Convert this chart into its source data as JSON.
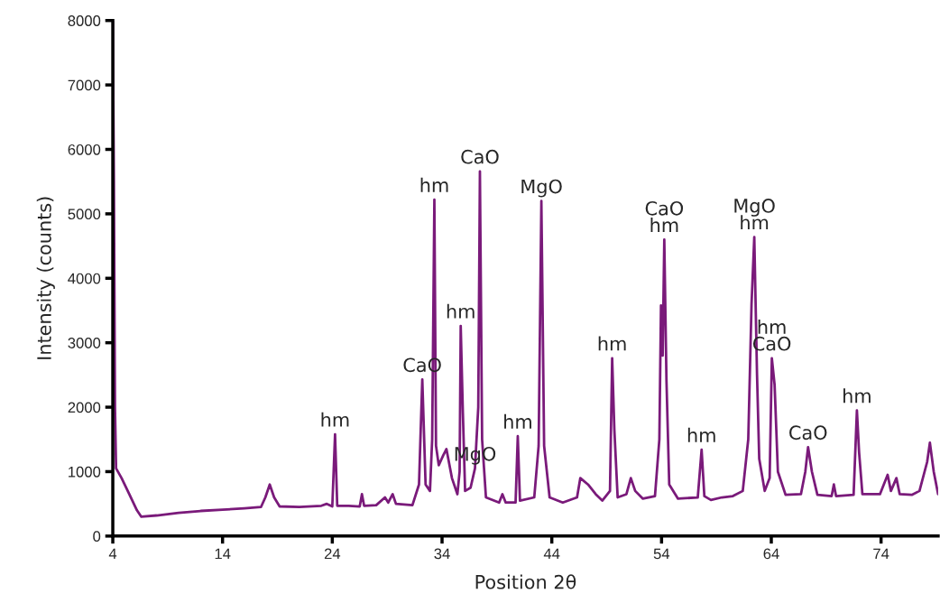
{
  "chart_data": {
    "type": "line",
    "xlabel": "Position 2θ",
    "ylabel": "Intensity (counts)",
    "xlim": [
      4,
      79.2
    ],
    "xticks": [
      4,
      14,
      24,
      34,
      44,
      54,
      64,
      74
    ],
    "ylim": [
      0,
      8000
    ],
    "yticks": [
      0,
      1000,
      2000,
      3000,
      4000,
      5000,
      6000,
      7000,
      8000
    ],
    "grid": false,
    "legend": false,
    "marker": "none",
    "line_style": "solid",
    "series": [
      {
        "color": "#7a1a7a",
        "x": [
          4.0,
          4.1,
          4.2,
          4.3,
          4.8,
          5.5,
          6.2,
          6.6,
          8,
          10,
          12,
          14,
          16,
          17.5,
          17.9,
          18.3,
          18.7,
          19.2,
          21,
          23,
          23.5,
          24.0,
          24.25,
          24.45,
          25.5,
          26.5,
          26.7,
          26.9,
          28,
          28.8,
          29.1,
          29.5,
          29.8,
          31.3,
          31.9,
          32.2,
          32.5,
          32.9,
          33.1,
          33.3,
          33.45,
          33.7,
          34.1,
          34.4,
          34.9,
          35.4,
          35.6,
          35.7,
          35.9,
          36.1,
          36.6,
          37.0,
          37.3,
          37.45,
          37.65,
          38,
          39.2,
          39.5,
          39.8,
          40.7,
          40.9,
          41.1,
          42.4,
          42.8,
          43.05,
          43.3,
          43.8,
          45,
          46.3,
          46.6,
          47.3,
          48,
          48.6,
          49.3,
          49.5,
          49.7,
          50.0,
          50.8,
          51.2,
          51.6,
          52.3,
          53.4,
          53.8,
          53.95,
          54.1,
          54.25,
          54.45,
          54.7,
          55.5,
          57.3,
          57.65,
          57.9,
          58.5,
          59.5,
          60.5,
          61.4,
          61.9,
          62.2,
          62.45,
          62.7,
          62.9,
          63.4,
          63.85,
          64.05,
          64.3,
          64.6,
          65.3,
          66.7,
          67.1,
          67.35,
          67.7,
          68.2,
          69.5,
          69.7,
          69.9,
          71.5,
          71.8,
          72.0,
          72.3,
          73.9,
          74.6,
          74.9,
          75.4,
          75.7,
          76.8,
          77.5,
          78.2,
          78.45,
          78.8,
          79.2
        ],
        "values": [
          8000,
          5500,
          2000,
          1050,
          900,
          650,
          400,
          300,
          320,
          360,
          390,
          410,
          430,
          450,
          600,
          800,
          600,
          460,
          450,
          470,
          500,
          460,
          1580,
          470,
          470,
          460,
          650,
          470,
          480,
          600,
          520,
          650,
          500,
          480,
          800,
          2430,
          800,
          700,
          1500,
          5220,
          1400,
          1100,
          1250,
          1350,
          900,
          650,
          1000,
          3260,
          1900,
          700,
          750,
          1050,
          2000,
          5660,
          1500,
          600,
          520,
          650,
          520,
          520,
          1550,
          550,
          600,
          1400,
          5200,
          1400,
          600,
          520,
          600,
          900,
          800,
          650,
          550,
          700,
          2760,
          1650,
          600,
          650,
          900,
          700,
          580,
          620,
          1500,
          3580,
          2800,
          4600,
          2400,
          800,
          580,
          600,
          1340,
          620,
          560,
          600,
          620,
          700,
          1500,
          3600,
          4640,
          2500,
          1200,
          700,
          900,
          2760,
          2350,
          1000,
          640,
          650,
          1000,
          1380,
          1000,
          640,
          620,
          800,
          620,
          640,
          1950,
          1300,
          650,
          650,
          950,
          700,
          900,
          650,
          640,
          700,
          1150,
          1450,
          1000,
          650
        ]
      }
    ],
    "annotations": [
      {
        "text": "hm",
        "x": 24.25,
        "y": 1580
      },
      {
        "text": "CaO",
        "x": 32.2,
        "y": 2430
      },
      {
        "text": "hm",
        "x": 33.3,
        "y": 5220
      },
      {
        "text": "hm",
        "x": 35.7,
        "y": 3260
      },
      {
        "text": "MgO",
        "x": 37.0,
        "y": 1050
      },
      {
        "text": "CaO",
        "x": 37.45,
        "y": 5660
      },
      {
        "text": "hm",
        "x": 40.9,
        "y": 1550
      },
      {
        "text": "MgO",
        "x": 43.05,
        "y": 5200
      },
      {
        "text": "hm",
        "x": 49.5,
        "y": 2760
      },
      {
        "text": "CaO\nhm",
        "x": 54.25,
        "y": 4600
      },
      {
        "text": "hm",
        "x": 57.65,
        "y": 1340
      },
      {
        "text": "MgO\nhm",
        "x": 62.45,
        "y": 4640
      },
      {
        "text": "hm\nCaO",
        "x": 64.05,
        "y": 2760
      },
      {
        "text": "CaO",
        "x": 67.35,
        "y": 1380
      },
      {
        "text": "hm",
        "x": 71.8,
        "y": 1950
      }
    ]
  }
}
